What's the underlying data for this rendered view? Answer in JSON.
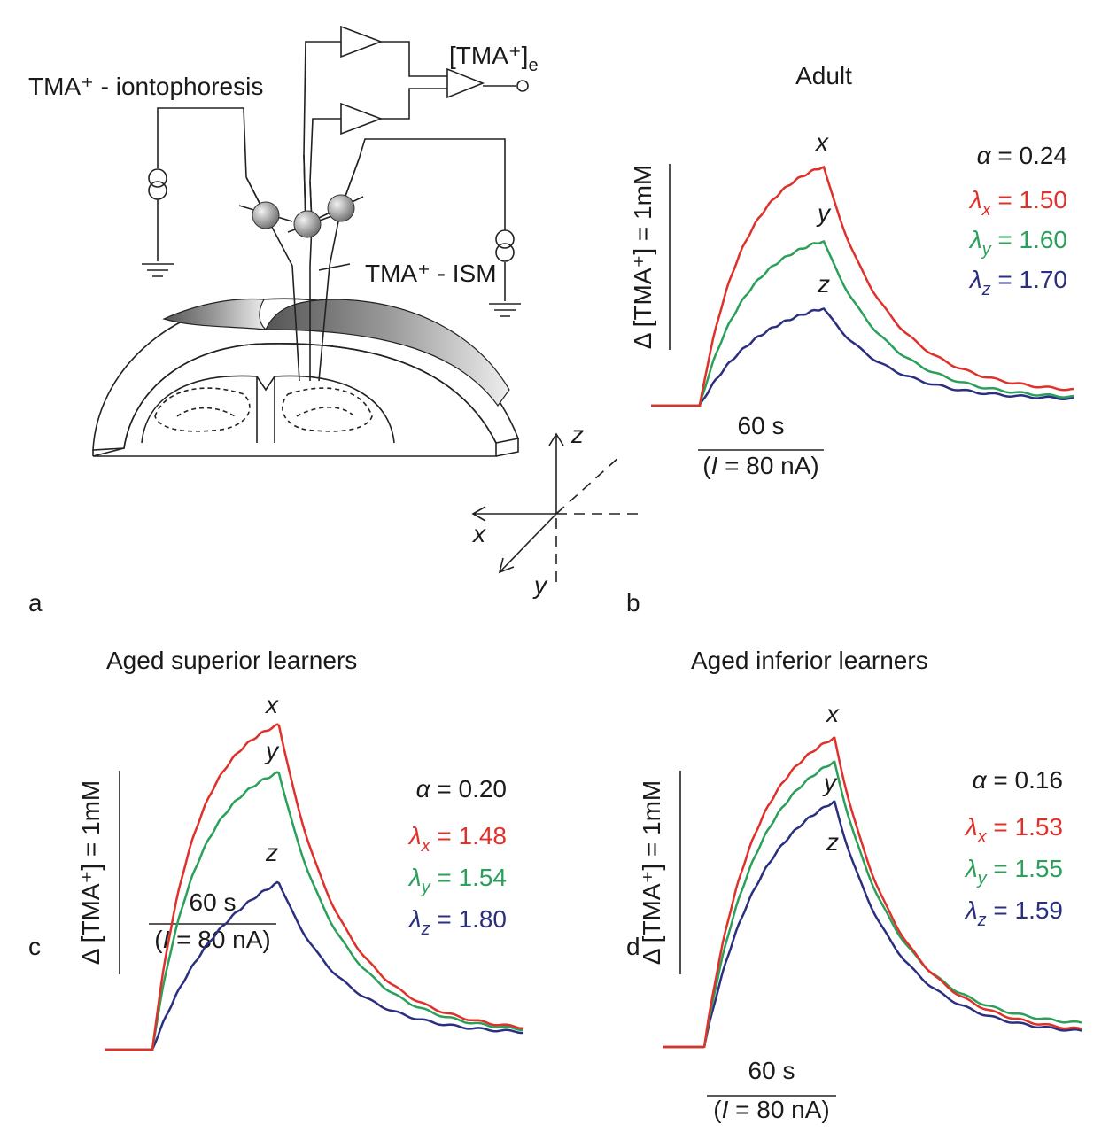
{
  "panel_a": {
    "label": "a",
    "iontophoresis": "TMA⁺ - iontophoresis",
    "output": {
      "main": "[TMA⁺]",
      "sub": "e"
    },
    "ism": "TMA⁺ - ISM",
    "axes": {
      "x": "x",
      "y": "y",
      "z": "z"
    }
  },
  "panels": [
    {
      "label": "b",
      "title": "Adult",
      "scale_y": "Δ [TMA⁺] = 1mM",
      "scale_time": "60 s",
      "current": [
        "(",
        "I",
        " = 80 nA)"
      ],
      "params": [
        {
          "symbol": "α",
          "text": " = 0.24",
          "color": "#1a1a1a"
        },
        {
          "symbol": "λ",
          "sub": "x",
          "text": " = 1.50",
          "color": "#e0302a"
        },
        {
          "symbol": "λ",
          "sub": "y",
          "text": " = 1.60",
          "color": "#2aa05a"
        },
        {
          "symbol": "λ",
          "sub": "z",
          "text": " = 1.70",
          "color": "#2b2f80"
        }
      ],
      "traces": [
        {
          "name": "x",
          "color": "#e0302a"
        },
        {
          "name": "y",
          "color": "#2aa05a"
        },
        {
          "name": "z",
          "color": "#2b2f80"
        }
      ]
    },
    {
      "label": "c",
      "title": "Aged superior learners",
      "scale_y": "Δ [TMA⁺] = 1mM",
      "scale_time": "60 s",
      "current": [
        "(",
        "I",
        " = 80 nA)"
      ],
      "params": [
        {
          "symbol": "α",
          "text": " = 0.20",
          "color": "#1a1a1a"
        },
        {
          "symbol": "λ",
          "sub": "x",
          "text": " = 1.48",
          "color": "#e0302a"
        },
        {
          "symbol": "λ",
          "sub": "y",
          "text": " = 1.54",
          "color": "#2aa05a"
        },
        {
          "symbol": "λ",
          "sub": "z",
          "text": " = 1.80",
          "color": "#2b2f80"
        }
      ],
      "traces": [
        {
          "name": "x",
          "color": "#e0302a"
        },
        {
          "name": "y",
          "color": "#2aa05a"
        },
        {
          "name": "z",
          "color": "#2b2f80"
        }
      ]
    },
    {
      "label": "d",
      "title": "Aged inferior learners",
      "scale_y": "Δ [TMA⁺] = 1mM",
      "scale_time": "60 s",
      "current": [
        "(",
        "I",
        " = 80 nA)"
      ],
      "params": [
        {
          "symbol": "α",
          "text": " = 0.16",
          "color": "#1a1a1a"
        },
        {
          "symbol": "λ",
          "sub": "x",
          "text": " = 1.53",
          "color": "#e0302a"
        },
        {
          "symbol": "λ",
          "sub": "y",
          "text": " = 1.55",
          "color": "#2aa05a"
        },
        {
          "symbol": "λ",
          "sub": "z",
          "text": " = 1.59",
          "color": "#2b2f80"
        }
      ],
      "traces": [
        {
          "name": "x",
          "color": "#e0302a"
        },
        {
          "name": "y",
          "color": "#2aa05a"
        },
        {
          "name": "z",
          "color": "#2b2f80"
        }
      ]
    }
  ]
}
